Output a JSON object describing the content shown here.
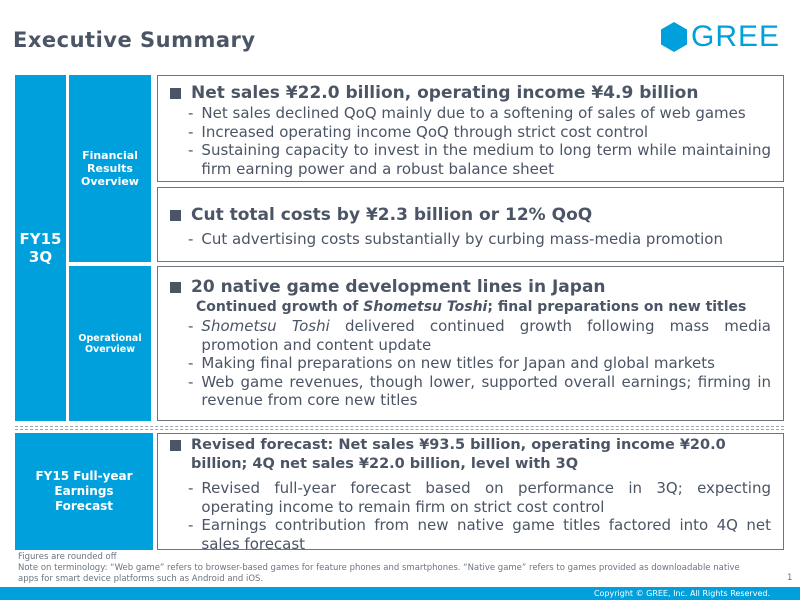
{
  "title": "Executive Summary",
  "logo": {
    "text": "GREE",
    "color": "#00a0dc"
  },
  "period_label": "FY15 3Q",
  "sections": {
    "financial": "Financial Results Overview",
    "operational": "Operational Overview",
    "forecast": "FY15 Full-year Earnings Forecast"
  },
  "boxes": [
    {
      "head": "Net sales ¥22.0 billion, operating income ¥4.9 billion",
      "bullets": [
        "Net sales declined QoQ mainly due to a softening of sales of web games",
        "Increased operating income QoQ through strict cost control",
        "Sustaining capacity to invest in the medium to long term while maintaining firm earning power and a robust balance sheet"
      ]
    },
    {
      "head": "Cut total costs by ¥2.3 billion or 12% QoQ",
      "bullets": [
        "Cut advertising costs substantially by curbing mass-media promotion"
      ]
    },
    {
      "head": "20 native game development lines in Japan",
      "sub_pre": "Continued growth of ",
      "sub_em": "Shometsu Toshi",
      "sub_post": "; final preparations on new titles",
      "b0_em": "Shometsu Toshi",
      "b0_rest": " delivered continued growth following mass media promotion and content update",
      "bullets": [
        "Making final preparations on new titles for Japan and global markets",
        "Web game revenues, though lower, supported overall earnings; firming in revenue from core new titles"
      ]
    },
    {
      "head": "Revised forecast: Net sales ¥93.5 billion, operating income ¥20.0 billion; 4Q net sales ¥22.0 billion, level with 3Q",
      "bullets": [
        "Revised full-year forecast based on performance in 3Q; expecting operating income to remain firm on strict cost control",
        "Earnings contribution from new native game titles factored into 4Q net sales forecast"
      ]
    }
  ],
  "dash": "-",
  "notes": [
    "Figures are rounded off",
    "Note on terminology: “Web game” refers to browser-based games for feature phones and smartphones. “Native game” refers to games provided as downloadable native apps for smart device platforms such as Android and iOS."
  ],
  "page_number": "1",
  "copyright": "Copyright © GREE, Inc. All Rights Reserved."
}
